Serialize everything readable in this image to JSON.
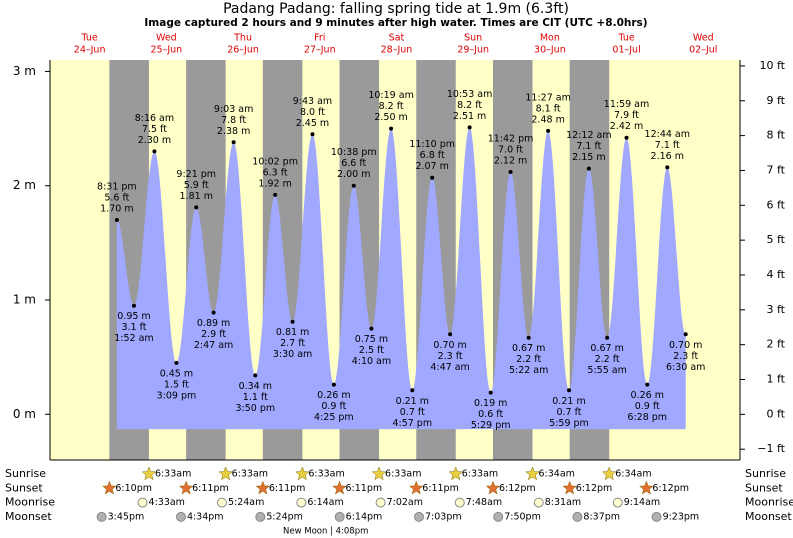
{
  "chart_data": {
    "type": "tide",
    "title": "Padang Padang: falling  spring tide at 1.9m (6.3ft)",
    "subtitle": "Image captured 2 hours and 9 minutes after high water. Times are CIT (UTC +8.0hrs)",
    "days": [
      {
        "weekday": "Tue",
        "date": "24–Jun"
      },
      {
        "weekday": "Wed",
        "date": "25–Jun"
      },
      {
        "weekday": "Thu",
        "date": "26–Jun"
      },
      {
        "weekday": "Fri",
        "date": "27–Jun"
      },
      {
        "weekday": "Sat",
        "date": "28–Jun"
      },
      {
        "weekday": "Sun",
        "date": "29–Jun"
      },
      {
        "weekday": "Mon",
        "date": "30–Jun"
      },
      {
        "weekday": "Tue",
        "date": "01–Jul"
      },
      {
        "weekday": "Wed",
        "date": "02–Jul"
      }
    ],
    "ylim": [
      -0.4,
      3.1
    ],
    "yticks": [
      {
        "value": 0,
        "label": "0 m"
      },
      {
        "value": 1,
        "label": "1 m"
      },
      {
        "value": 2,
        "label": "2 m"
      },
      {
        "value": 3,
        "label": "3 m"
      }
    ],
    "y2lim": [
      -1.31,
      10.17
    ],
    "y2ticks": [
      {
        "value": -1,
        "label": "−1 ft"
      },
      {
        "value": 0,
        "label": "0 ft"
      },
      {
        "value": 1,
        "label": "1 ft"
      },
      {
        "value": 2,
        "label": "2 ft"
      },
      {
        "value": 3,
        "label": "3 ft"
      },
      {
        "value": 4,
        "label": "4 ft"
      },
      {
        "value": 5,
        "label": "5 ft"
      },
      {
        "value": 6,
        "label": "6 ft"
      },
      {
        "value": 7,
        "label": "7 ft"
      },
      {
        "value": 8,
        "label": "8 ft"
      },
      {
        "value": 9,
        "label": "9 ft"
      },
      {
        "value": 10,
        "label": "10 ft"
      }
    ],
    "extremes": [
      {
        "day": 0,
        "time": "8:31 pm",
        "m": 1.7,
        "m_label": "1.70 m",
        "ft_label": "5.6 ft",
        "kind": "high"
      },
      {
        "day": 1,
        "time": "1:52 am",
        "m": 0.95,
        "m_label": "0.95 m",
        "ft_label": "3.1 ft",
        "kind": "low"
      },
      {
        "day": 1,
        "time": "8:16 am",
        "m": 2.3,
        "m_label": "2.30 m",
        "ft_label": "7.5 ft",
        "kind": "high"
      },
      {
        "day": 1,
        "time": "3:09 pm",
        "m": 0.45,
        "m_label": "0.45 m",
        "ft_label": "1.5 ft",
        "kind": "low"
      },
      {
        "day": 1,
        "time": "9:21 pm",
        "m": 1.81,
        "m_label": "1.81 m",
        "ft_label": "5.9 ft",
        "kind": "high"
      },
      {
        "day": 2,
        "time": "2:47 am",
        "m": 0.89,
        "m_label": "0.89 m",
        "ft_label": "2.9 ft",
        "kind": "low"
      },
      {
        "day": 2,
        "time": "9:03 am",
        "m": 2.38,
        "m_label": "2.38 m",
        "ft_label": "7.8 ft",
        "kind": "high"
      },
      {
        "day": 2,
        "time": "3:50 pm",
        "m": 0.34,
        "m_label": "0.34 m",
        "ft_label": "1.1 ft",
        "kind": "low"
      },
      {
        "day": 2,
        "time": "10:02 pm",
        "m": 1.92,
        "m_label": "1.92 m",
        "ft_label": "6.3 ft",
        "kind": "high"
      },
      {
        "day": 3,
        "time": "3:30 am",
        "m": 0.81,
        "m_label": "0.81 m",
        "ft_label": "2.7 ft",
        "kind": "low"
      },
      {
        "day": 3,
        "time": "9:43 am",
        "m": 2.45,
        "m_label": "2.45 m",
        "ft_label": "8.0 ft",
        "kind": "high"
      },
      {
        "day": 3,
        "time": "4:25 pm",
        "m": 0.26,
        "m_label": "0.26 m",
        "ft_label": "0.9 ft",
        "kind": "low"
      },
      {
        "day": 3,
        "time": "10:38 pm",
        "m": 2.0,
        "m_label": "2.00 m",
        "ft_label": "6.6 ft",
        "kind": "high"
      },
      {
        "day": 4,
        "time": "4:10 am",
        "m": 0.75,
        "m_label": "0.75 m",
        "ft_label": "2.5 ft",
        "kind": "low"
      },
      {
        "day": 4,
        "time": "10:19 am",
        "m": 2.5,
        "m_label": "2.50 m",
        "ft_label": "8.2 ft",
        "kind": "high"
      },
      {
        "day": 4,
        "time": "4:57 pm",
        "m": 0.21,
        "m_label": "0.21 m",
        "ft_label": "0.7 ft",
        "kind": "low"
      },
      {
        "day": 4,
        "time": "11:10 pm",
        "m": 2.07,
        "m_label": "2.07 m",
        "ft_label": "6.8 ft",
        "kind": "high"
      },
      {
        "day": 5,
        "time": "4:47 am",
        "m": 0.7,
        "m_label": "0.70 m",
        "ft_label": "2.3 ft",
        "kind": "low"
      },
      {
        "day": 5,
        "time": "10:53 am",
        "m": 2.51,
        "m_label": "2.51 m",
        "ft_label": "8.2 ft",
        "kind": "high"
      },
      {
        "day": 5,
        "time": "5:29 pm",
        "m": 0.19,
        "m_label": "0.19 m",
        "ft_label": "0.6 ft",
        "kind": "low"
      },
      {
        "day": 5,
        "time": "11:42 pm",
        "m": 2.12,
        "m_label": "2.12 m",
        "ft_label": "7.0 ft",
        "kind": "high"
      },
      {
        "day": 6,
        "time": "5:22 am",
        "m": 0.67,
        "m_label": "0.67 m",
        "ft_label": "2.2 ft",
        "kind": "low"
      },
      {
        "day": 6,
        "time": "11:27 am",
        "m": 2.48,
        "m_label": "2.48 m",
        "ft_label": "8.1 ft",
        "kind": "high"
      },
      {
        "day": 6,
        "time": "5:59 pm",
        "m": 0.21,
        "m_label": "0.21 m",
        "ft_label": "0.7 ft",
        "kind": "low"
      },
      {
        "day": 7,
        "time": "12:12 am",
        "m": 2.15,
        "m_label": "2.15 m",
        "ft_label": "7.1 ft",
        "kind": "high"
      },
      {
        "day": 7,
        "time": "5:55 am",
        "m": 0.67,
        "m_label": "0.67 m",
        "ft_label": "2.2 ft",
        "kind": "low"
      },
      {
        "day": 7,
        "time": "11:59 am",
        "m": 2.42,
        "m_label": "2.42 m",
        "ft_label": "7.9 ft",
        "kind": "high"
      },
      {
        "day": 7,
        "time": "6:28 pm",
        "m": 0.26,
        "m_label": "0.26 m",
        "ft_label": "0.9 ft",
        "kind": "low"
      },
      {
        "day": 8,
        "time": "12:44 am",
        "m": 2.16,
        "m_label": "2.16 m",
        "ft_label": "7.1 ft",
        "kind": "high"
      },
      {
        "day": 8,
        "time": "6:30 am",
        "m": 0.7,
        "m_label": "0.70 m",
        "ft_label": "2.3 ft",
        "kind": "low"
      }
    ],
    "rows": [
      {
        "name": "Sunrise",
        "icon": "sunrise",
        "events": [
          {
            "day": 1,
            "time": "6:33am"
          },
          {
            "day": 2,
            "time": "6:33am"
          },
          {
            "day": 3,
            "time": "6:33am"
          },
          {
            "day": 4,
            "time": "6:33am"
          },
          {
            "day": 5,
            "time": "6:33am"
          },
          {
            "day": 6,
            "time": "6:34am"
          },
          {
            "day": 7,
            "time": "6:34am"
          }
        ]
      },
      {
        "name": "Sunset",
        "icon": "sunset",
        "events": [
          {
            "day": 0,
            "time": "6:10pm"
          },
          {
            "day": 1,
            "time": "6:11pm"
          },
          {
            "day": 2,
            "time": "6:11pm"
          },
          {
            "day": 3,
            "time": "6:11pm"
          },
          {
            "day": 4,
            "time": "6:11pm"
          },
          {
            "day": 5,
            "time": "6:12pm"
          },
          {
            "day": 6,
            "time": "6:12pm"
          },
          {
            "day": 7,
            "time": "6:12pm"
          }
        ]
      },
      {
        "name": "Moonrise",
        "icon": "moonrise",
        "events": [
          {
            "day": 1,
            "time": "4:33am"
          },
          {
            "day": 2,
            "time": "5:24am"
          },
          {
            "day": 3,
            "time": "6:14am"
          },
          {
            "day": 4,
            "time": "7:02am"
          },
          {
            "day": 5,
            "time": "7:48am"
          },
          {
            "day": 6,
            "time": "8:31am"
          },
          {
            "day": 7,
            "time": "9:14am"
          }
        ]
      },
      {
        "name": "Moonset",
        "icon": "moonset",
        "events": [
          {
            "day": 0,
            "time": "3:45pm"
          },
          {
            "day": 1,
            "time": "4:34pm"
          },
          {
            "day": 2,
            "time": "5:24pm"
          },
          {
            "day": 3,
            "time": "6:14pm"
          },
          {
            "day": 4,
            "time": "7:03pm"
          },
          {
            "day": 5,
            "time": "7:50pm"
          },
          {
            "day": 6,
            "time": "8:37pm"
          },
          {
            "day": 7,
            "time": "9:23pm"
          }
        ]
      }
    ],
    "moon_phase": "New Moon | 4:08pm"
  }
}
